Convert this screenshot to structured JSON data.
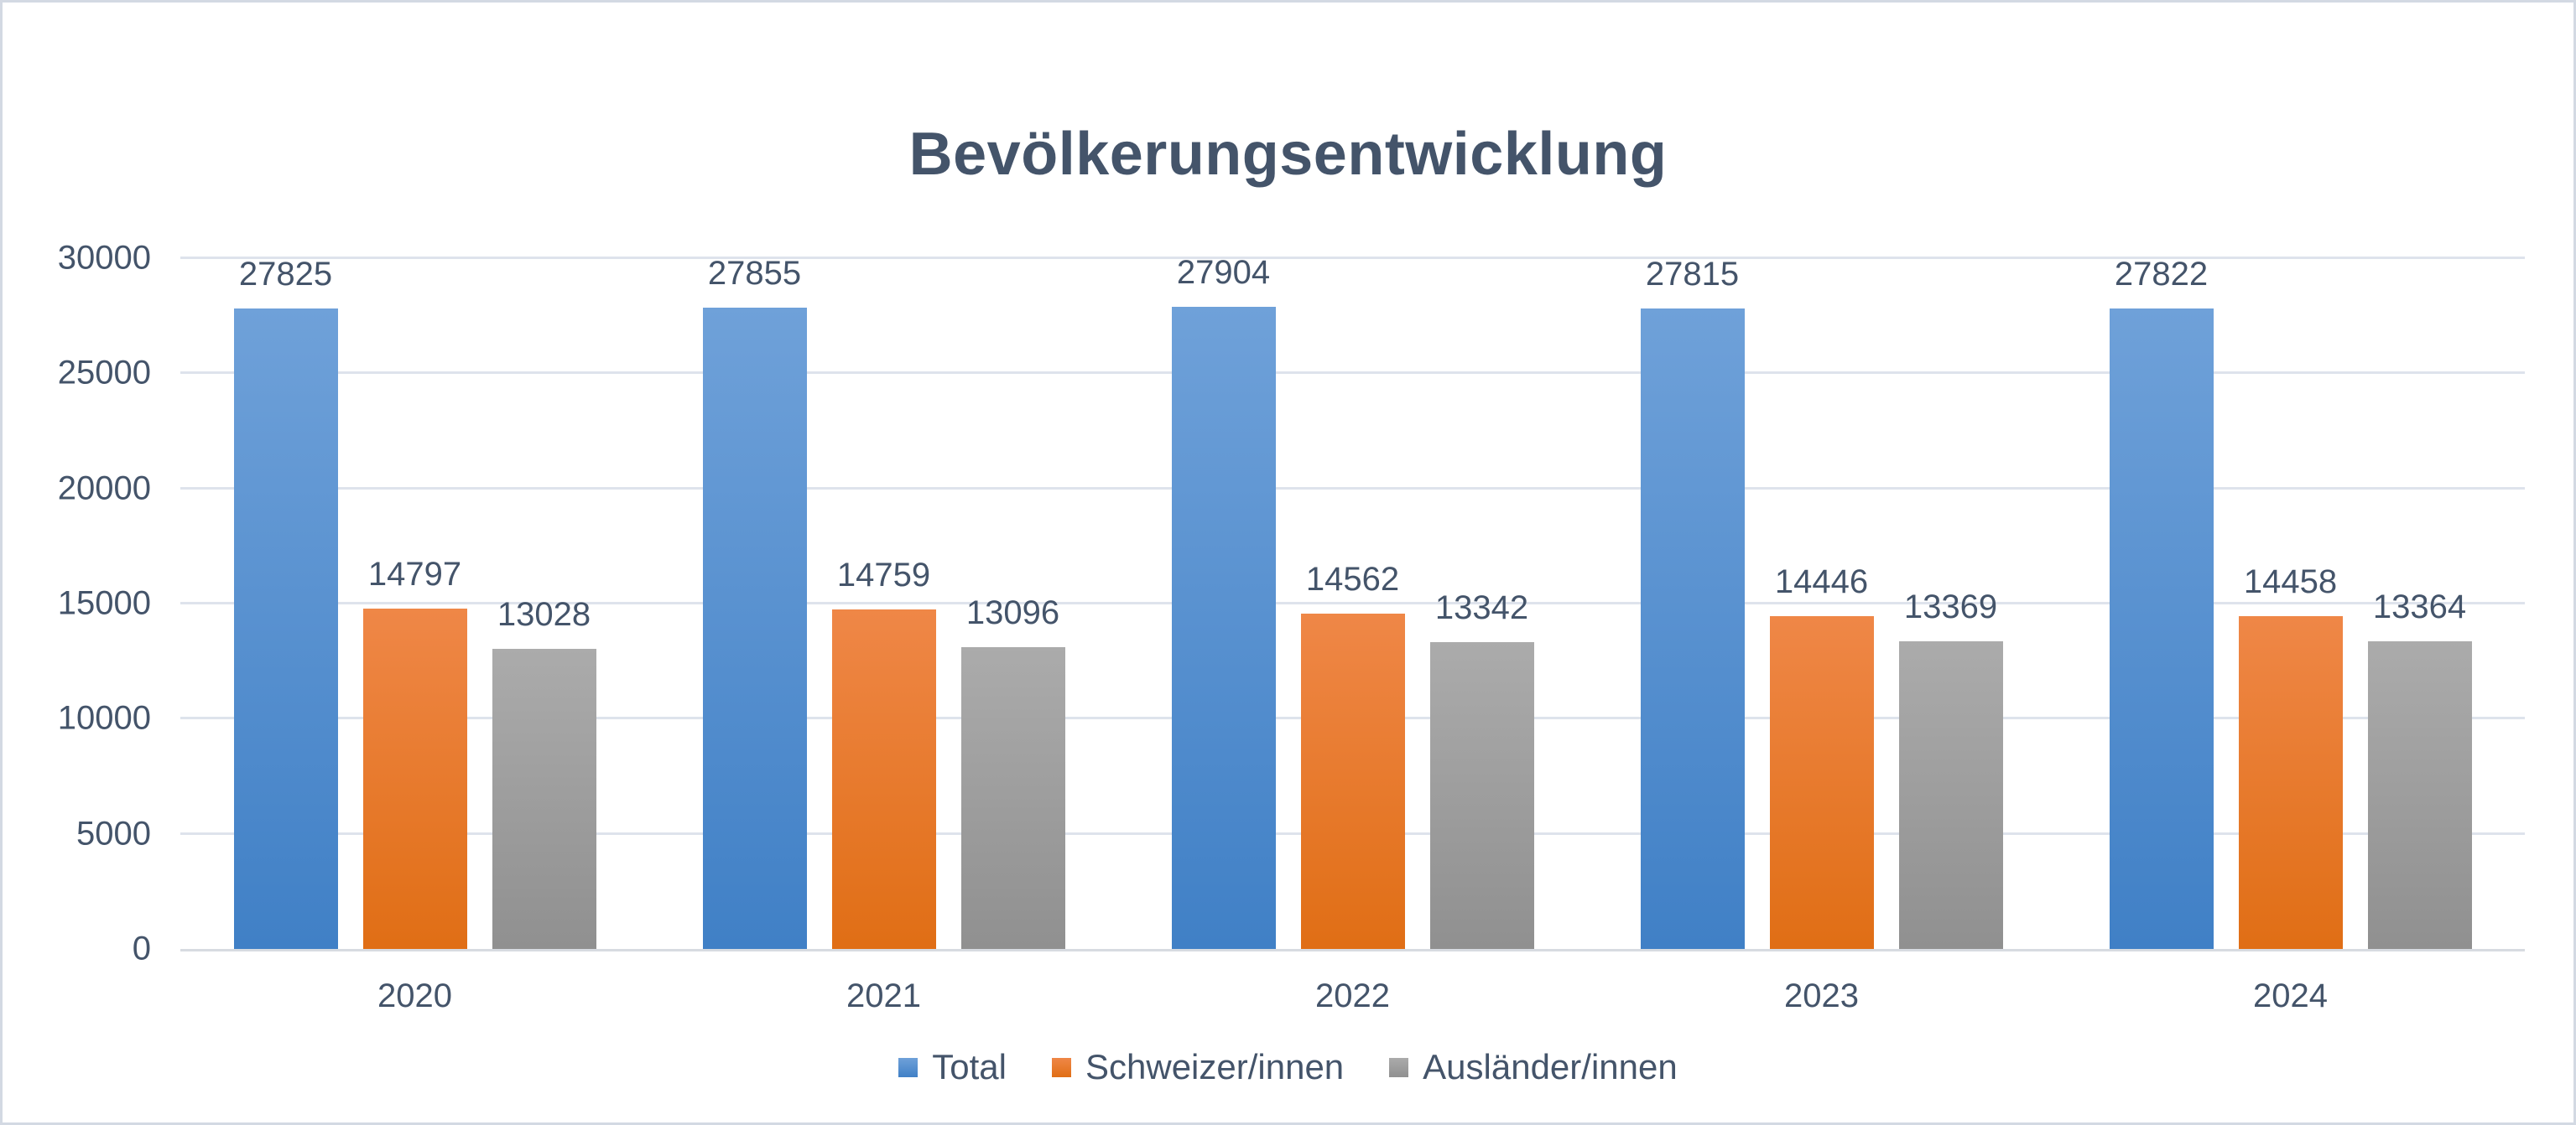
{
  "chart_data": {
    "type": "bar",
    "title": "Bevölkerungsentwicklung",
    "categories": [
      "2020",
      "2021",
      "2022",
      "2023",
      "2024"
    ],
    "series": [
      {
        "name": "Total",
        "values": [
          27825,
          27855,
          27904,
          27815,
          27822
        ],
        "color_top": "#6FA1D9",
        "color_bottom": "#4080C6"
      },
      {
        "name": "Schweizer/innen",
        "values": [
          14797,
          14759,
          14562,
          14446,
          14458
        ],
        "color_top": "#EF8747",
        "color_bottom": "#E06E15"
      },
      {
        "name": "Ausländer/innen",
        "values": [
          13028,
          13096,
          13342,
          13369,
          13364
        ],
        "color_top": "#ABABAB",
        "color_bottom": "#909090"
      }
    ],
    "ylim": [
      0,
      30000
    ],
    "yticks": [
      0,
      5000,
      10000,
      15000,
      20000,
      25000,
      30000
    ],
    "grid": true,
    "legend_position": "bottom",
    "data_labels": true
  },
  "colors": {
    "text": "#44546A",
    "gridline": "#DEE3EC",
    "axis_line": "#D7DBE1",
    "frame_border": "#D3D9E3",
    "background": "#FFFFFF"
  }
}
